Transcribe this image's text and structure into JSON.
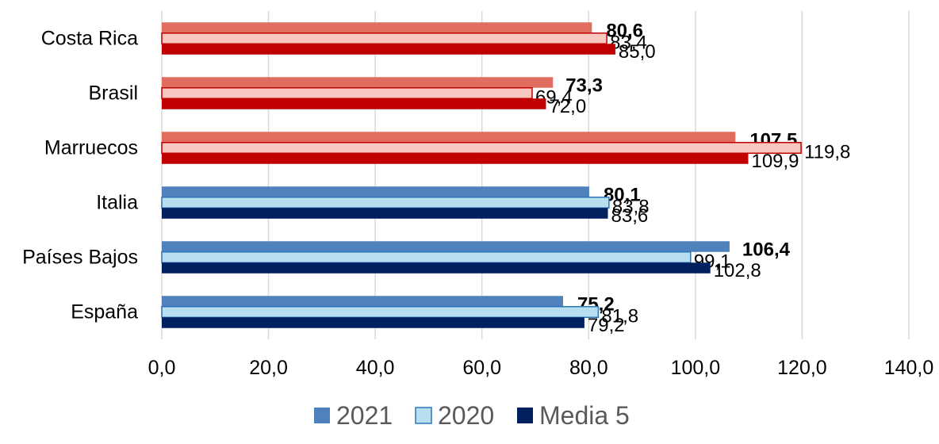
{
  "chart_data": {
    "type": "bar",
    "orientation": "horizontal",
    "title": "",
    "xlabel": "",
    "ylabel": "",
    "categories": [
      "Costa Rica",
      "Brasil",
      "Marruecos",
      "Italia",
      "Países Bajos",
      "España"
    ],
    "series": [
      {
        "name": "2021",
        "values": [
          80.6,
          73.3,
          107.5,
          80.1,
          106.4,
          75.2
        ],
        "labels": [
          "80,6",
          "73,3",
          "107,5",
          "80,1",
          "106,4",
          "75,2"
        ]
      },
      {
        "name": "2020",
        "values": [
          83.4,
          69.4,
          119.8,
          83.8,
          99.1,
          81.8
        ],
        "labels": [
          "83,4",
          "69,4",
          "119,8",
          "83,8",
          "99,1",
          "81,8"
        ]
      },
      {
        "name": "Media 5",
        "values": [
          85.0,
          72.0,
          109.9,
          83.6,
          102.8,
          79.2
        ],
        "labels": [
          "85,0",
          "72,0",
          "109,9",
          "83,6",
          "102,8",
          "79,2"
        ]
      }
    ],
    "xlim": [
      0,
      140
    ],
    "xticks": [
      "0,0",
      "20,0",
      "40,0",
      "60,0",
      "80,0",
      "100,0",
      "120,0",
      "140,0"
    ],
    "grid": true,
    "legend_position": "bottom",
    "colors": {
      "red_group": {
        "2021": "#e06d5f",
        "2020": "#f7c7c0",
        "Media 5": "#c00000",
        "2020_border": "#c00000"
      },
      "blue_group": {
        "2021": "#4f81bd",
        "2020": "#b8dff0",
        "Media 5": "#002060",
        "2020_border": "#2e75b6"
      },
      "legend": {
        "2021": "#4f81bd",
        "2020": "#b8dff0",
        "Media 5": "#002060"
      }
    },
    "red_categories": [
      "Costa Rica",
      "Brasil",
      "Marruecos"
    ]
  }
}
